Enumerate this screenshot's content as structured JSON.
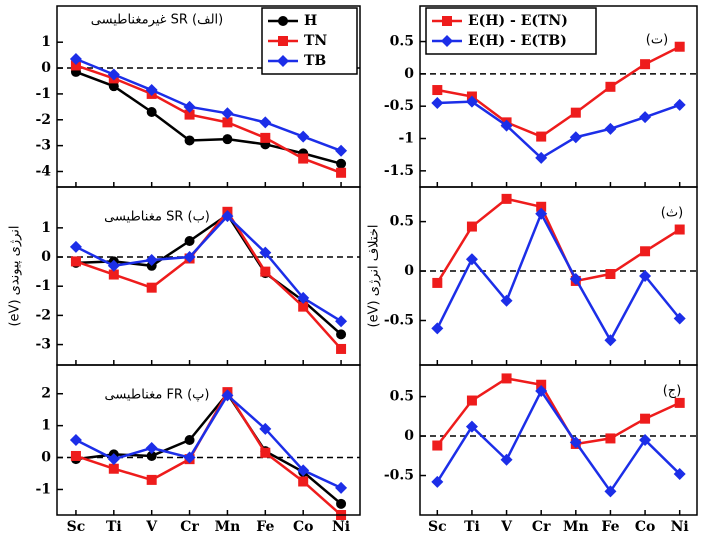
{
  "chart_data": [
    {
      "type": "line",
      "title": "(الف) SR غیرمغناطیسی",
      "legend": "upper right",
      "zero_line": true,
      "ylim": [
        -4.6,
        2.4
      ],
      "yticks": [
        -4,
        -3,
        -2,
        -1,
        0,
        1
      ],
      "series": [
        {
          "name": "H",
          "color": "#000000",
          "marker": "circle",
          "values": [
            -0.15,
            -0.7,
            -1.7,
            -2.8,
            -2.75,
            -2.95,
            -3.3,
            -3.7
          ]
        },
        {
          "name": "TN",
          "color": "#ee1c1c",
          "marker": "square",
          "values": [
            0.1,
            -0.4,
            -1.0,
            -1.8,
            -2.1,
            -2.7,
            -3.5,
            -4.05
          ]
        },
        {
          "name": "TB",
          "color": "#1c2ee8",
          "marker": "diamond",
          "values": [
            0.35,
            -0.25,
            -0.85,
            -1.5,
            -1.75,
            -2.1,
            -2.65,
            -3.2
          ]
        }
      ]
    },
    {
      "type": "line",
      "title": "(ب) SR مغناطیسی",
      "ylabel": "انرژی پیوندی (eV)",
      "zero_line": true,
      "ylim": [
        -3.7,
        2.4
      ],
      "yticks": [
        -3,
        -2,
        -1,
        0,
        1
      ],
      "series": [
        {
          "color": "#000000",
          "marker": "circle",
          "values": [
            -0.2,
            -0.15,
            -0.3,
            0.55,
            1.45,
            -0.55,
            -1.5,
            -2.65
          ]
        },
        {
          "color": "#ee1c1c",
          "marker": "square",
          "values": [
            -0.15,
            -0.6,
            -1.05,
            -0.05,
            1.55,
            -0.5,
            -1.7,
            -3.15
          ]
        },
        {
          "color": "#1c2ee8",
          "marker": "diamond",
          "values": [
            0.35,
            -0.3,
            -0.1,
            0.0,
            1.4,
            0.15,
            -1.4,
            -2.2
          ]
        }
      ]
    },
    {
      "type": "line",
      "title": "(پ) FR مغناطیسی",
      "zero_line": true,
      "categories": [
        "Sc",
        "Ti",
        "V",
        "Cr",
        "Mn",
        "Fe",
        "Co",
        "Ni"
      ],
      "ylim": [
        -1.8,
        2.9
      ],
      "yticks": [
        -1,
        0,
        1,
        2
      ],
      "series": [
        {
          "color": "#000000",
          "marker": "circle",
          "values": [
            -0.05,
            0.1,
            0.05,
            0.55,
            2.0,
            0.2,
            -0.45,
            -1.45
          ]
        },
        {
          "color": "#ee1c1c",
          "marker": "square",
          "values": [
            0.05,
            -0.35,
            -0.7,
            -0.05,
            2.05,
            0.15,
            -0.75,
            -1.8
          ]
        },
        {
          "color": "#1c2ee8",
          "marker": "diamond",
          "values": [
            0.55,
            -0.05,
            0.3,
            0.0,
            1.95,
            0.9,
            -0.4,
            -0.95
          ]
        }
      ]
    },
    {
      "type": "line",
      "title": "(ت)",
      "legend": "upper left",
      "zero_line": true,
      "ylim": [
        -1.75,
        1.05
      ],
      "yticks": [
        -1.5,
        -1,
        -0.5,
        0,
        0.5
      ],
      "series": [
        {
          "name": "E(H) - E(TN)",
          "color": "#ee1c1c",
          "marker": "square",
          "values": [
            -0.25,
            -0.35,
            -0.75,
            -0.97,
            -0.6,
            -0.2,
            0.15,
            0.42
          ]
        },
        {
          "name": "E(H) - E(TB)",
          "color": "#1c2ee8",
          "marker": "diamond",
          "values": [
            -0.45,
            -0.43,
            -0.8,
            -1.3,
            -0.98,
            -0.85,
            -0.67,
            -0.48
          ]
        }
      ]
    },
    {
      "type": "line",
      "title": "(ث)",
      "ylabel": "اختلاف انرژی (eV)",
      "zero_line": true,
      "ylim": [
        -0.95,
        0.85
      ],
      "yticks": [
        -0.5,
        0,
        0.5
      ],
      "series": [
        {
          "color": "#ee1c1c",
          "marker": "square",
          "values": [
            -0.12,
            0.45,
            0.73,
            0.65,
            -0.1,
            -0.03,
            0.2,
            0.42
          ]
        },
        {
          "color": "#1c2ee8",
          "marker": "diamond",
          "values": [
            -0.58,
            0.12,
            -0.3,
            0.58,
            -0.08,
            -0.7,
            -0.05,
            -0.48
          ]
        }
      ]
    },
    {
      "type": "line",
      "title": "(ج)",
      "zero_line": true,
      "categories": [
        "Sc",
        "Ti",
        "V",
        "Cr",
        "Mn",
        "Fe",
        "Co",
        "Ni"
      ],
      "ylim": [
        -1.0,
        0.9
      ],
      "yticks": [
        -0.5,
        0,
        0.5
      ],
      "series": [
        {
          "color": "#ee1c1c",
          "marker": "square",
          "values": [
            -0.12,
            0.45,
            0.73,
            0.65,
            -0.1,
            -0.03,
            0.22,
            0.42
          ]
        },
        {
          "color": "#1c2ee8",
          "marker": "diamond",
          "values": [
            -0.58,
            0.12,
            -0.3,
            0.57,
            -0.08,
            -0.7,
            -0.05,
            -0.48
          ]
        }
      ]
    }
  ]
}
